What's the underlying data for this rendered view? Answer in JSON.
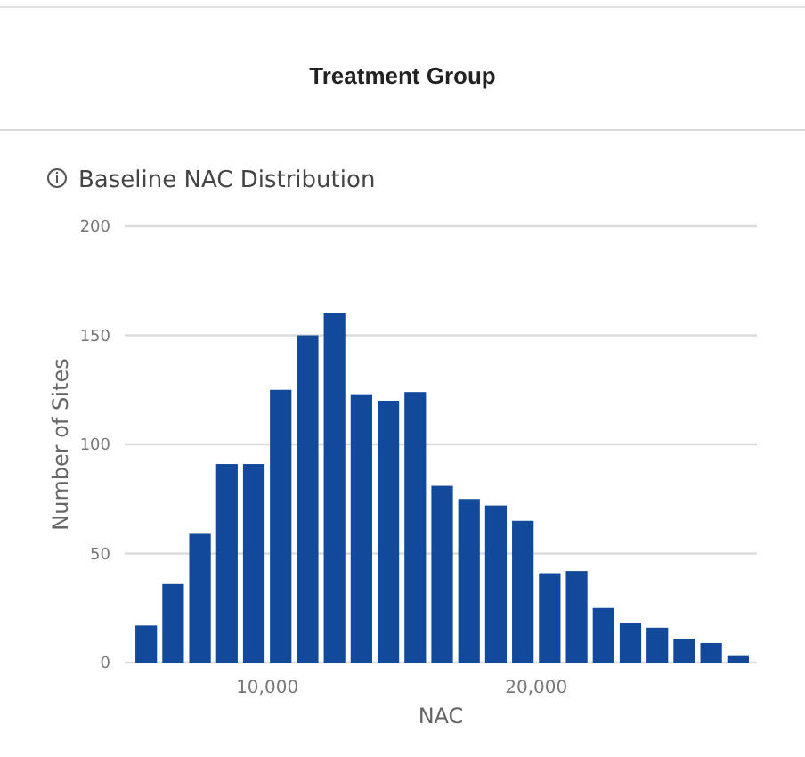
{
  "chart_data": {
    "type": "histogram",
    "title": "Treatment Group",
    "subtitle": "Baseline NAC Distribution",
    "xlabel": "NAC",
    "ylabel": "Number of Sites",
    "bins": [
      5000,
      6000,
      7000,
      8000,
      9000,
      10000,
      11000,
      12000,
      13000,
      14000,
      15000,
      16000,
      17000,
      18000,
      19000,
      20000,
      21000,
      22000,
      23000,
      24000,
      25000,
      26000,
      27000,
      28000
    ],
    "values": [
      17,
      36,
      59,
      91,
      91,
      125,
      150,
      160,
      123,
      120,
      124,
      81,
      75,
      72,
      65,
      41,
      42,
      25,
      18,
      16,
      11,
      9,
      3
    ],
    "color": "#12499a",
    "xlim": [
      4700,
      28200
    ],
    "xticks": [
      {
        "value": 10000,
        "label": "10,000"
      },
      {
        "value": 20000,
        "label": "20,000"
      }
    ],
    "ylim": [
      0,
      200
    ],
    "yticks": [
      0,
      50,
      100,
      150,
      200
    ],
    "grid": "y"
  }
}
